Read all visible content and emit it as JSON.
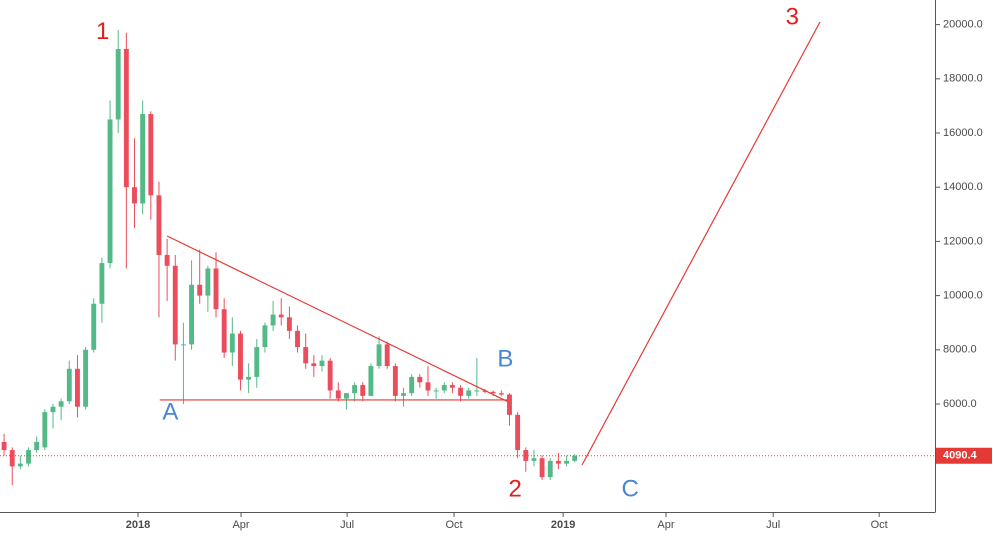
{
  "chart_data": {
    "type": "candlestick",
    "xlim": [
      -0.5,
      114.2
    ],
    "xticks": [
      {
        "value": 16.43,
        "label": "2018",
        "bold": true
      },
      {
        "value": 29.07,
        "label": "Apr"
      },
      {
        "value": 42.08,
        "label": "Jul"
      },
      {
        "value": 55.2,
        "label": "Oct"
      },
      {
        "value": 68.58,
        "label": "2019",
        "bold": true
      },
      {
        "value": 81.2,
        "label": "Apr"
      },
      {
        "value": 94.35,
        "label": "Jul"
      },
      {
        "value": 107.35,
        "label": "Oct"
      }
    ],
    "ylim": [
      2015,
      20908
    ],
    "yticks": [
      {
        "value": 6000,
        "label": "6000.0"
      },
      {
        "value": 8000,
        "label": "8000.0"
      },
      {
        "value": 10000,
        "label": "10000.0"
      },
      {
        "value": 12000,
        "label": "12000.0"
      },
      {
        "value": 14000,
        "label": "14000.0"
      },
      {
        "value": 16000,
        "label": "16000.0"
      },
      {
        "value": 18000,
        "label": "18000.0"
      },
      {
        "value": 20000,
        "label": "20000.0"
      }
    ],
    "up_color": "#53b987",
    "down_color": "#eb4d5c",
    "open": [
      4600,
      4300,
      3700,
      3800,
      4300,
      4400,
      5700,
      5900,
      6100,
      7300,
      5900,
      8000,
      9700,
      11200,
      16500,
      19100,
      14000,
      13400,
      16700,
      13700,
      11500,
      11100,
      8200,
      8200,
      10400,
      10000,
      11000,
      9500,
      7900,
      8600,
      6900,
      7000,
      8100,
      8900,
      9300,
      9200,
      8700,
      8100,
      7500,
      7400,
      7600,
      6500,
      6200,
      6400,
      6700,
      6300,
      7400,
      8200,
      7400,
      6300,
      6400,
      7000,
      6800,
      6500,
      6500,
      6700,
      6600,
      6300,
      6500,
      6500,
      6450,
      6400,
      6350,
      5600,
      4300,
      3900,
      4000,
      3300,
      3900,
      3800,
      3900
    ],
    "high": [
      4900,
      4400,
      4100,
      4400,
      4800,
      5800,
      6000,
      6200,
      7600,
      7800,
      8100,
      9900,
      11400,
      17200,
      19800,
      19700,
      15800,
      17200,
      16800,
      14200,
      12100,
      11500,
      9000,
      11300,
      11700,
      11100,
      11600,
      9900,
      9200,
      8700,
      7500,
      8400,
      9000,
      9800,
      9900,
      9600,
      8900,
      8600,
      7800,
      7800,
      7700,
      6800,
      6400,
      6800,
      6800,
      7500,
      8500,
      8300,
      7500,
      6600,
      7100,
      7100,
      7400,
      6600,
      6800,
      6800,
      6700,
      6600,
      7700,
      6550,
      6500,
      6500,
      6400,
      5700,
      4400,
      4300,
      4100,
      4000,
      4200,
      4100,
      4150
    ],
    "low": [
      4100,
      3000,
      3600,
      3700,
      4200,
      4300,
      5100,
      5400,
      6000,
      5500,
      5800,
      7900,
      9000,
      11000,
      16000,
      11000,
      12500,
      13000,
      12800,
      9200,
      9800,
      7600,
      6000,
      8000,
      9700,
      9400,
      9200,
      7700,
      7400,
      6500,
      6400,
      6600,
      7900,
      8700,
      8900,
      8400,
      7900,
      7300,
      7000,
      7200,
      6200,
      6100,
      5800,
      6100,
      6100,
      6300,
      7300,
      7300,
      6100,
      5900,
      6300,
      6600,
      6300,
      6200,
      6400,
      6400,
      6100,
      6200,
      6300,
      6400,
      6300,
      6300,
      5200,
      4000,
      3500,
      3700,
      3200,
      3200,
      3600,
      3700,
      3850
    ],
    "close": [
      4300,
      3700,
      3800,
      4300,
      4600,
      5700,
      5900,
      6100,
      7300,
      5900,
      8000,
      9700,
      11200,
      16500,
      19100,
      14000,
      13400,
      16700,
      13700,
      11500,
      11100,
      8200,
      8200,
      10400,
      10000,
      11000,
      9500,
      7900,
      8600,
      6900,
      7000,
      8100,
      8900,
      9300,
      9200,
      8700,
      8100,
      7500,
      7400,
      7600,
      6500,
      6200,
      6400,
      6700,
      6300,
      7400,
      8200,
      7400,
      6300,
      6400,
      7000,
      6800,
      6500,
      6500,
      6700,
      6600,
      6300,
      6500,
      6500,
      6450,
      6400,
      6350,
      5600,
      4300,
      3900,
      4000,
      3300,
      3900,
      3800,
      3900,
      4090.4
    ],
    "last_price": 4090.4,
    "last_price_color": "#e53935",
    "lines": [
      {
        "x": [
          20.0,
          61.7
        ],
        "y": [
          12200,
          6100
        ],
        "color": "#e53935"
      },
      {
        "x": [
          19.1,
          61.8
        ],
        "y": [
          6150,
          6150
        ],
        "color": "#e53935"
      },
      {
        "x": [
          70.9,
          100.1
        ],
        "y": [
          3750,
          20100
        ],
        "color": "#e53935"
      }
    ],
    "annotations": [
      {
        "text": "1",
        "x": 12.1,
        "y": 19700,
        "color": "#e0201c"
      },
      {
        "text": "2",
        "x": 62.7,
        "y": 2830,
        "color": "#e0201c"
      },
      {
        "text": "3",
        "x": 96.7,
        "y": 20240,
        "color": "#e0201c"
      },
      {
        "text": "A",
        "x": 20.4,
        "y": 5670,
        "color": "#4a86d6"
      },
      {
        "text": "B",
        "x": 61.5,
        "y": 7620,
        "color": "#4a86d6"
      },
      {
        "text": "C",
        "x": 76.8,
        "y": 2830,
        "color": "#4a86d6"
      }
    ]
  }
}
